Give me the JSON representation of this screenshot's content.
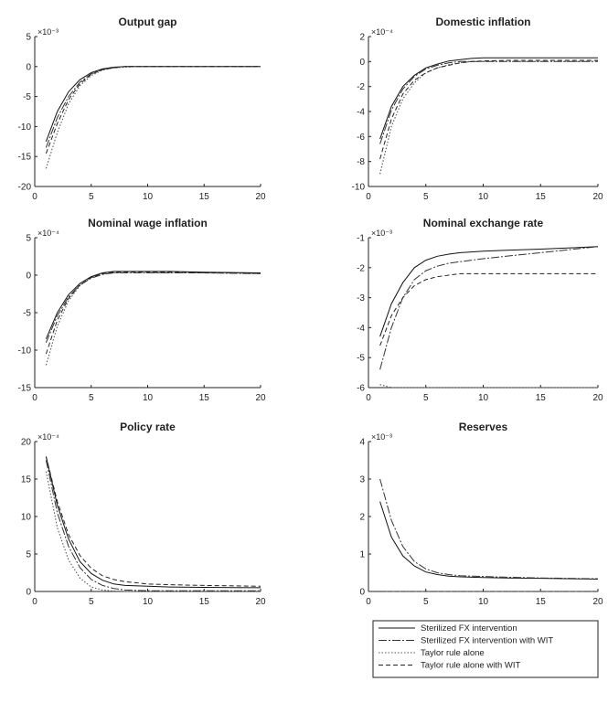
{
  "chart_data": [
    {
      "type": "line",
      "title": "Output gap",
      "exponent": "×10⁻³",
      "xlim": [
        0,
        20
      ],
      "ylim": [
        -20,
        5
      ],
      "xticks": [
        "0",
        "5",
        "10",
        "15",
        "20"
      ],
      "yticks": [
        "5",
        "0",
        "-5",
        "-10",
        "-15",
        "-20"
      ],
      "grid": false,
      "series": [
        {
          "name": "Sterilized FX intervention",
          "x": [
            1,
            2,
            3,
            4,
            5,
            6,
            7,
            8,
            9,
            10,
            12,
            15,
            20
          ],
          "y": [
            -12.5,
            -7.5,
            -4.2,
            -2.2,
            -1.0,
            -0.4,
            -0.1,
            0,
            0,
            0,
            0,
            0,
            0
          ]
        },
        {
          "name": "Sterilized FX intervention with WIT",
          "x": [
            1,
            2,
            3,
            4,
            5,
            6,
            7,
            8,
            9,
            10,
            12,
            15,
            20
          ],
          "y": [
            -13.5,
            -8.5,
            -5.0,
            -2.6,
            -1.2,
            -0.5,
            -0.2,
            0,
            0,
            0,
            0,
            0,
            0
          ]
        },
        {
          "name": "Taylor rule alone",
          "x": [
            1,
            2,
            3,
            4,
            5,
            6,
            7,
            8,
            9,
            10,
            12,
            15,
            20
          ],
          "y": [
            -17,
            -11,
            -6.2,
            -3.2,
            -1.5,
            -0.6,
            -0.2,
            -0.1,
            0,
            0,
            0,
            0,
            0
          ]
        },
        {
          "name": "Taylor rule alone with WIT",
          "x": [
            1,
            2,
            3,
            4,
            5,
            6,
            7,
            8,
            9,
            10,
            12,
            15,
            20
          ],
          "y": [
            -14.5,
            -9.5,
            -5.5,
            -2.9,
            -1.3,
            -0.5,
            -0.2,
            0,
            0,
            0,
            0,
            0,
            0
          ]
        }
      ]
    },
    {
      "type": "line",
      "title": "Domestic inflation",
      "exponent": "×10⁻⁴",
      "xlim": [
        0,
        20
      ],
      "ylim": [
        -10,
        2
      ],
      "xticks": [
        "0",
        "5",
        "10",
        "15",
        "20"
      ],
      "yticks": [
        "2",
        "0",
        "-2",
        "-4",
        "-6",
        "-8",
        "-10"
      ],
      "grid": false,
      "series": [
        {
          "name": "Sterilized FX intervention",
          "x": [
            1,
            2,
            3,
            4,
            5,
            6,
            7,
            8,
            9,
            10,
            12,
            15,
            20
          ],
          "y": [
            -6.2,
            -3.6,
            -2.0,
            -1.1,
            -0.5,
            -0.2,
            0.05,
            0.15,
            0.25,
            0.3,
            0.3,
            0.3,
            0.3
          ]
        },
        {
          "name": "Sterilized FX intervention with WIT",
          "x": [
            1,
            2,
            3,
            4,
            5,
            6,
            7,
            8,
            9,
            10,
            12,
            15,
            20
          ],
          "y": [
            -6.6,
            -3.9,
            -2.2,
            -1.2,
            -0.6,
            -0.3,
            -0.1,
            0,
            0,
            0,
            0,
            0,
            0
          ]
        },
        {
          "name": "Taylor rule alone",
          "x": [
            1,
            2,
            3,
            4,
            5,
            6,
            7,
            8,
            9,
            10,
            12,
            15,
            20
          ],
          "y": [
            -9,
            -5.2,
            -3.0,
            -1.7,
            -0.9,
            -0.5,
            -0.25,
            -0.1,
            0,
            0,
            0,
            0,
            0
          ]
        },
        {
          "name": "Taylor rule alone with WIT",
          "x": [
            1,
            2,
            3,
            4,
            5,
            6,
            7,
            8,
            9,
            10,
            12,
            15,
            20
          ],
          "y": [
            -7.8,
            -4.6,
            -2.6,
            -1.5,
            -0.9,
            -0.5,
            -0.3,
            -0.1,
            0,
            0.05,
            0.1,
            0.1,
            0.1
          ]
        }
      ]
    },
    {
      "type": "line",
      "title": "Nominal wage inflation",
      "exponent": "×10⁻⁴",
      "xlim": [
        0,
        20
      ],
      "ylim": [
        -15,
        5
      ],
      "xticks": [
        "0",
        "5",
        "10",
        "15",
        "20"
      ],
      "yticks": [
        "5",
        "0",
        "-5",
        "-10",
        "-15"
      ],
      "grid": false,
      "series": [
        {
          "name": "Sterilized FX intervention",
          "x": [
            1,
            2,
            3,
            4,
            5,
            6,
            7,
            8,
            9,
            10,
            12,
            15,
            20
          ],
          "y": [
            -8.5,
            -5.0,
            -2.6,
            -1.1,
            -0.2,
            0.3,
            0.5,
            0.5,
            0.5,
            0.5,
            0.5,
            0.4,
            0.3
          ]
        },
        {
          "name": "Sterilized FX intervention with WIT",
          "x": [
            1,
            2,
            3,
            4,
            5,
            6,
            7,
            8,
            9,
            10,
            12,
            15,
            20
          ],
          "y": [
            -9,
            -5.4,
            -2.9,
            -1.3,
            -0.4,
            0.1,
            0.3,
            0.3,
            0.3,
            0.3,
            0.3,
            0.3,
            0.2
          ]
        },
        {
          "name": "Taylor rule alone",
          "x": [
            1,
            2,
            3,
            4,
            5,
            6,
            7,
            8,
            9,
            10,
            12,
            15,
            20
          ],
          "y": [
            -12,
            -6.8,
            -3.4,
            -1.4,
            -0.3,
            0.2,
            0.3,
            0.3,
            0.3,
            0.3,
            0.3,
            0.3,
            0.2
          ]
        },
        {
          "name": "Taylor rule alone with WIT",
          "x": [
            1,
            2,
            3,
            4,
            5,
            6,
            7,
            8,
            9,
            10,
            12,
            15,
            20
          ],
          "y": [
            -10.5,
            -6.0,
            -3.1,
            -1.3,
            -0.3,
            0.2,
            0.4,
            0.4,
            0.4,
            0.4,
            0.4,
            0.3,
            0.3
          ]
        }
      ]
    },
    {
      "type": "line",
      "title": "Nominal exchange rate",
      "exponent": "×10⁻³",
      "xlim": [
        0,
        20
      ],
      "ylim": [
        -6,
        -1
      ],
      "xticks": [
        "0",
        "5",
        "10",
        "15",
        "20"
      ],
      "yticks": [
        "-1",
        "-2",
        "-3",
        "-4",
        "-5",
        "-6"
      ],
      "grid": false,
      "series": [
        {
          "name": "Sterilized FX intervention",
          "x": [
            1,
            2,
            3,
            4,
            5,
            6,
            7,
            8,
            10,
            12,
            15,
            20
          ],
          "y": [
            -4.3,
            -3.2,
            -2.5,
            -2.0,
            -1.75,
            -1.62,
            -1.55,
            -1.5,
            -1.45,
            -1.42,
            -1.38,
            -1.3
          ]
        },
        {
          "name": "Sterilized FX intervention with WIT",
          "x": [
            1,
            2,
            3,
            4,
            5,
            6,
            7,
            8,
            10,
            12,
            15,
            20
          ],
          "y": [
            -5.4,
            -4.0,
            -3.0,
            -2.4,
            -2.1,
            -1.95,
            -1.85,
            -1.8,
            -1.7,
            -1.62,
            -1.5,
            -1.3
          ]
        },
        {
          "name": "Taylor rule alone",
          "x": [
            1,
            2,
            3,
            4,
            5,
            6,
            7,
            8,
            10,
            12,
            15,
            20
          ],
          "y": [
            -5.9,
            -6.0,
            -6.0,
            -6.0,
            -6.0,
            -6.0,
            -6.0,
            -6.0,
            -6.0,
            -6.0,
            -6.0,
            -6.0
          ]
        },
        {
          "name": "Taylor rule alone with WIT",
          "x": [
            1,
            2,
            3,
            4,
            5,
            6,
            7,
            8,
            10,
            12,
            15,
            20
          ],
          "y": [
            -4.6,
            -3.6,
            -3.0,
            -2.6,
            -2.4,
            -2.3,
            -2.25,
            -2.2,
            -2.2,
            -2.2,
            -2.2,
            -2.2
          ]
        }
      ]
    },
    {
      "type": "line",
      "title": "Policy rate",
      "exponent": "×10⁻⁴",
      "xlim": [
        0,
        20
      ],
      "ylim": [
        0,
        20
      ],
      "xticks": [
        "0",
        "5",
        "10",
        "15",
        "20"
      ],
      "yticks": [
        "20",
        "15",
        "10",
        "5",
        "0"
      ],
      "grid": false,
      "series": [
        {
          "name": "Sterilized FX intervention",
          "x": [
            1,
            2,
            3,
            4,
            5,
            6,
            7,
            8,
            10,
            12,
            15,
            20
          ],
          "y": [
            18,
            11.5,
            7.0,
            4.0,
            2.4,
            1.5,
            1.0,
            0.8,
            0.7,
            0.6,
            0.55,
            0.5
          ]
        },
        {
          "name": "Sterilized FX intervention with WIT",
          "x": [
            1,
            2,
            3,
            4,
            5,
            6,
            7,
            8,
            10,
            12,
            15,
            20
          ],
          "y": [
            17.5,
            10.5,
            6.0,
            3.2,
            1.6,
            0.8,
            0.4,
            0.2,
            0.1,
            0.1,
            0.1,
            0.1
          ]
        },
        {
          "name": "Taylor rule alone",
          "x": [
            1,
            2,
            3,
            4,
            5,
            6,
            7,
            8,
            10,
            12,
            15,
            20
          ],
          "y": [
            16,
            8.5,
            4.2,
            1.8,
            0.6,
            0.2,
            0.05,
            0,
            0,
            0,
            0,
            0
          ]
        },
        {
          "name": "Taylor rule alone with WIT",
          "x": [
            1,
            2,
            3,
            4,
            5,
            6,
            7,
            8,
            10,
            12,
            15,
            20
          ],
          "y": [
            18,
            12.0,
            7.6,
            4.8,
            3.1,
            2.1,
            1.6,
            1.3,
            1.0,
            0.9,
            0.8,
            0.7
          ]
        }
      ]
    },
    {
      "type": "line",
      "title": "Reserves",
      "exponent": "×10⁻³",
      "xlim": [
        0,
        20
      ],
      "ylim": [
        0,
        4
      ],
      "xticks": [
        "0",
        "5",
        "10",
        "15",
        "20"
      ],
      "yticks": [
        "4",
        "3",
        "2",
        "1",
        "0"
      ],
      "grid": false,
      "series": [
        {
          "name": "Sterilized FX intervention",
          "x": [
            1,
            2,
            3,
            4,
            5,
            6,
            7,
            8,
            10,
            12,
            15,
            20
          ],
          "y": [
            2.4,
            1.45,
            0.95,
            0.68,
            0.52,
            0.45,
            0.41,
            0.39,
            0.37,
            0.36,
            0.35,
            0.33
          ]
        },
        {
          "name": "Sterilized FX intervention with WIT",
          "x": [
            1,
            2,
            3,
            4,
            5,
            6,
            7,
            8,
            10,
            12,
            15,
            20
          ],
          "y": [
            3.0,
            1.9,
            1.2,
            0.8,
            0.6,
            0.5,
            0.45,
            0.42,
            0.4,
            0.38,
            0.36,
            0.34
          ]
        },
        {
          "name": "Taylor rule alone",
          "x": [
            1,
            2,
            3,
            4,
            5,
            6,
            7,
            8,
            10,
            12,
            15,
            20
          ],
          "y": [
            0,
            0,
            0,
            0,
            0,
            0,
            0,
            0,
            0,
            0,
            0,
            0
          ]
        },
        {
          "name": "Taylor rule alone with WIT",
          "x": [
            1,
            2,
            3,
            4,
            5,
            6,
            7,
            8,
            10,
            12,
            15,
            20
          ],
          "y": [
            0,
            0,
            0,
            0,
            0,
            0,
            0,
            0,
            0,
            0,
            0,
            0
          ]
        }
      ]
    }
  ],
  "legend": {
    "placement": "bottom-right",
    "entries": [
      "Sterilized FX intervention",
      "Sterilized FX intervention with WIT",
      "Taylor rule alone",
      "Taylor rule alone with WIT"
    ]
  }
}
